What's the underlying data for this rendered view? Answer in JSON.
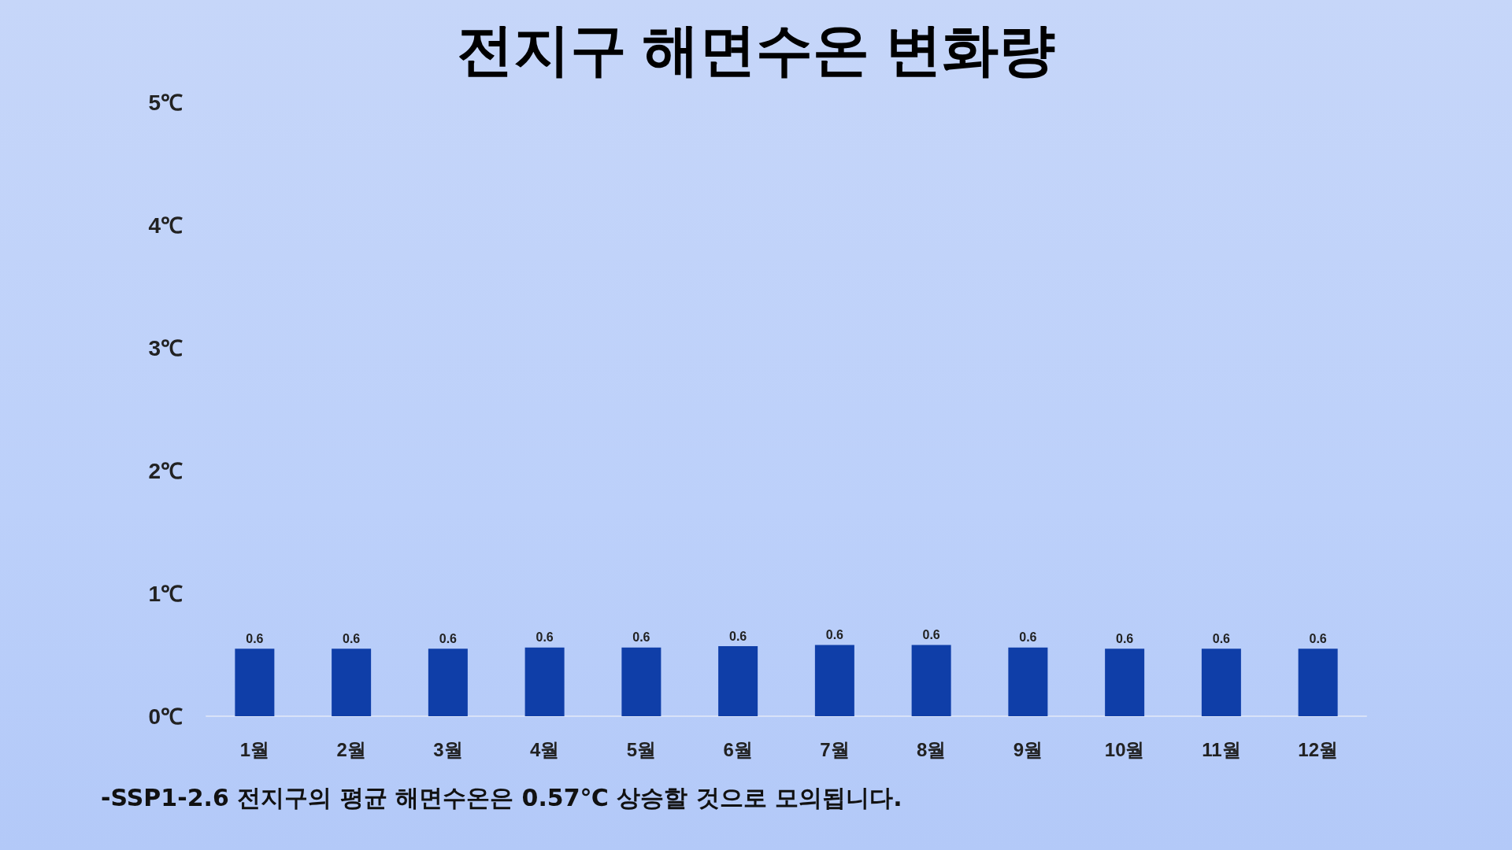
{
  "chart_data": {
    "type": "bar",
    "title": "전지구 해면수온 변화량",
    "categories": [
      "1월",
      "2월",
      "3월",
      "4월",
      "5월",
      "6월",
      "7월",
      "8월",
      "9월",
      "10월",
      "11월",
      "12월"
    ],
    "values": [
      0.55,
      0.55,
      0.55,
      0.56,
      0.56,
      0.57,
      0.58,
      0.58,
      0.56,
      0.55,
      0.55,
      0.55
    ],
    "value_labels": [
      "0.6",
      "0.6",
      "0.6",
      "0.6",
      "0.6",
      "0.6",
      "0.6",
      "0.6",
      "0.6",
      "0.6",
      "0.6",
      "0.6"
    ],
    "color": "#0f3ea8",
    "ylim": [
      0,
      5
    ],
    "yticks": [
      {
        "value": 0,
        "label": "0℃"
      },
      {
        "value": 1,
        "label": "1℃"
      },
      {
        "value": 2,
        "label": "2℃"
      },
      {
        "value": 3,
        "label": "3℃"
      },
      {
        "value": 4,
        "label": "4℃"
      },
      {
        "value": 5,
        "label": "5℃"
      }
    ],
    "grid": false,
    "annotations": [
      "-SSP1-2.6 전지구의 평균 해면수온은 0.57℃ 상승할 것으로 모의됩니다."
    ]
  }
}
